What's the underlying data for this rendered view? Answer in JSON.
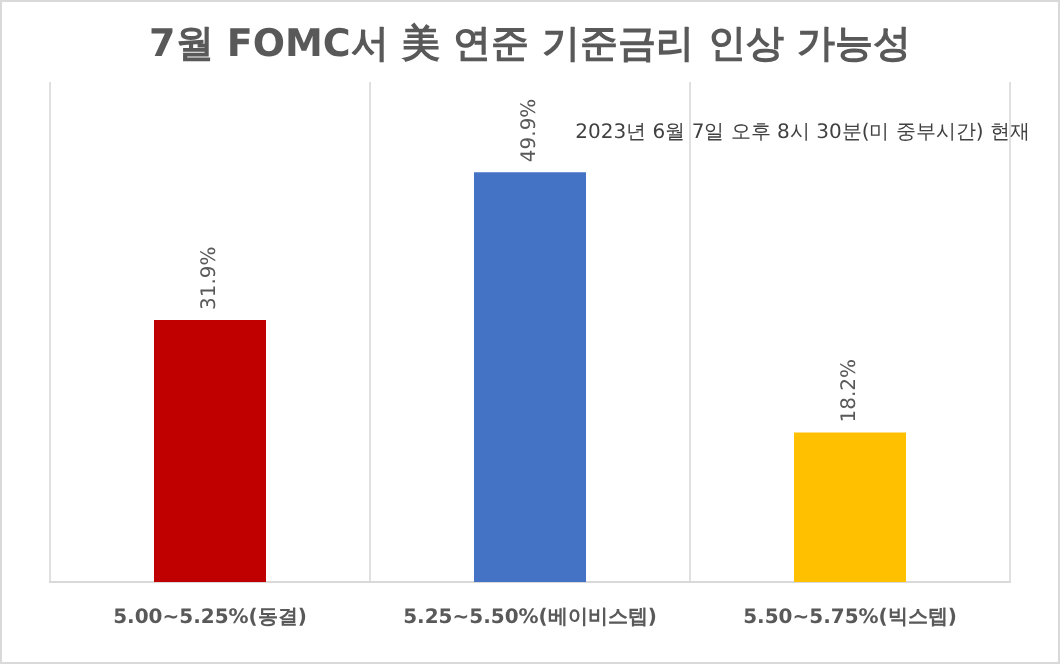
{
  "chart_data": {
    "type": "bar",
    "title": "7월 FOMC서 美 연준 기준금리 인상 가능성",
    "categories": [
      "5.00~5.25%(동결)",
      "5.25~5.50%(베이비스텝)",
      "5.50~5.75%(빅스텝)"
    ],
    "values": [
      31.9,
      49.9,
      18.2
    ],
    "colors": [
      "#c00000",
      "#4472c4",
      "#ffc000"
    ],
    "value_labels": [
      "31.9%",
      "49.9%",
      "18.2%"
    ],
    "annotations": [
      "2023년 6월 7일 오후 8시 30분(미 중부시간) 현재"
    ],
    "grid": "x"
  }
}
